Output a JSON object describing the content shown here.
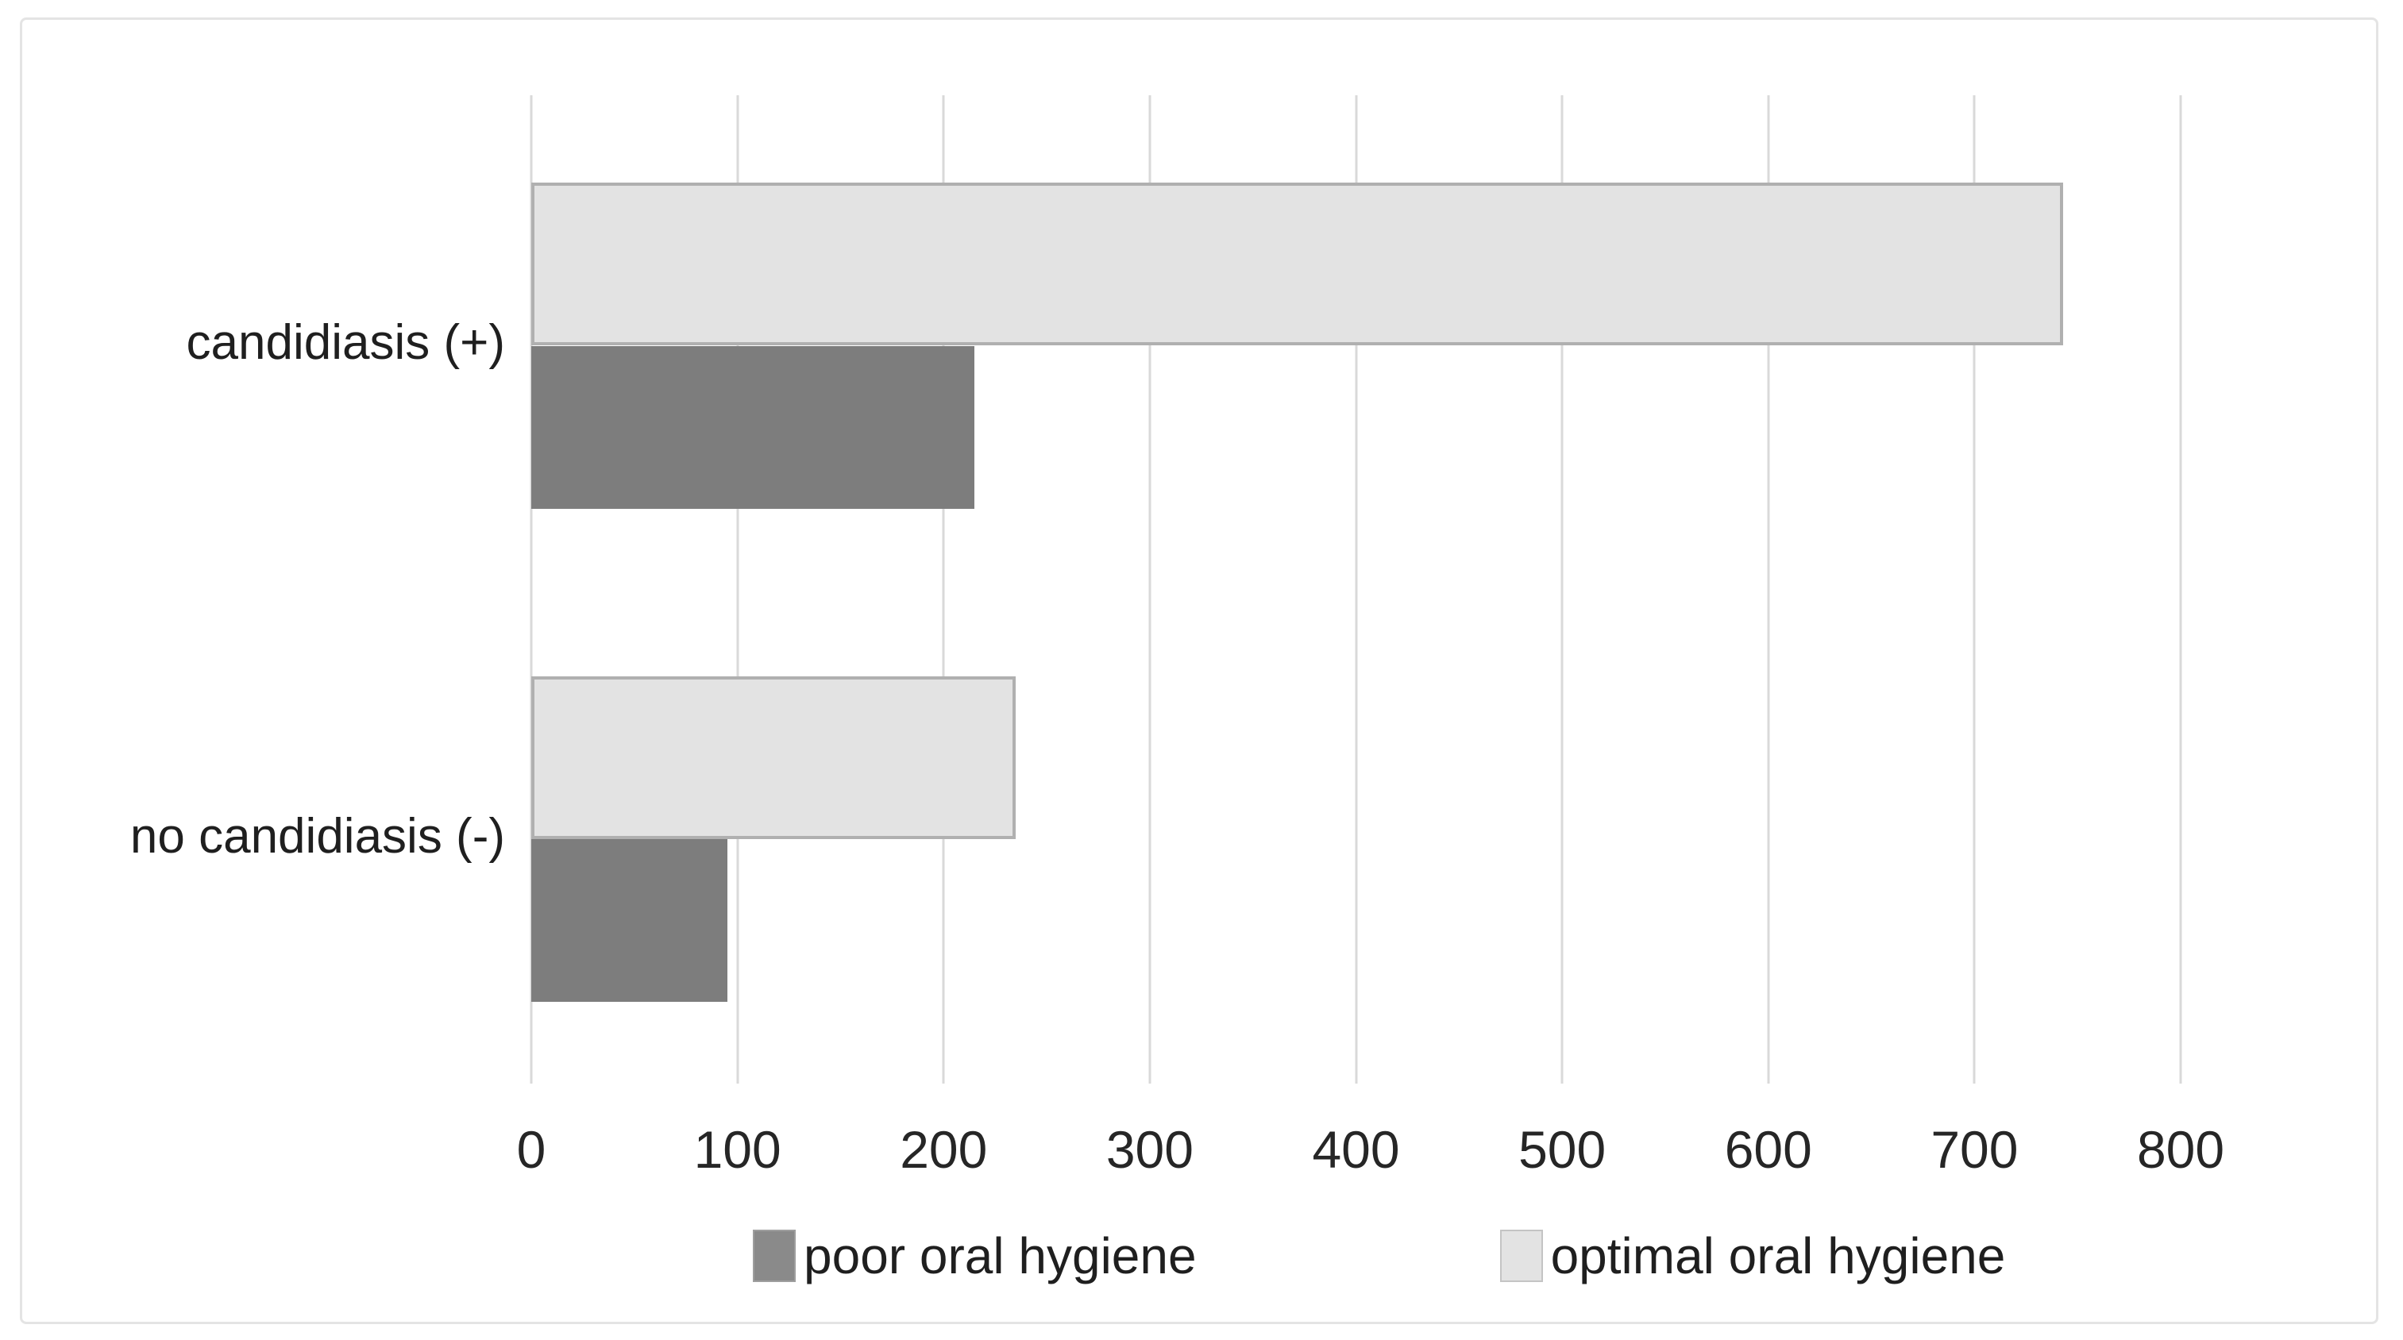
{
  "chart_data": {
    "type": "bar",
    "orientation": "horizontal",
    "title": "",
    "xlabel": "",
    "ylabel": "",
    "categories": [
      "candidiasis (+)",
      "no candidiasis (-)"
    ],
    "series": [
      {
        "name": "poor oral hygiene",
        "color": "#7d7d7d",
        "values": [
          215,
          95
        ]
      },
      {
        "name": "optimal oral hygiene",
        "color": "#e3e3e3",
        "values": [
          743,
          235
        ]
      }
    ],
    "x_ticks": [
      0,
      100,
      200,
      300,
      400,
      500,
      600,
      700,
      800
    ],
    "xlim": [
      0,
      800
    ],
    "grid": "vertical-gridlines-on",
    "legend_position": "bottom",
    "colors": {
      "gridline": "#d9d9d9",
      "bar_optimal_fill": "#e3e3e3",
      "bar_optimal_border": "#b0b0b0",
      "bar_poor_fill": "#7d7d7d",
      "figure_border": "#e4e4e4",
      "text": "#1f1f1f",
      "background": "#ffffff"
    }
  }
}
